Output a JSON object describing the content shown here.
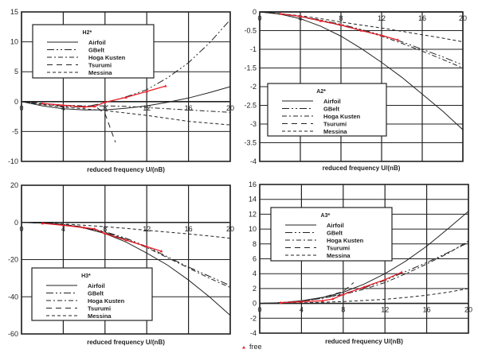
{
  "chart_data": [
    {
      "type": "line",
      "title": "H2*",
      "xlabel": "reduced frequency U/(nB)",
      "ylabel": "",
      "xlim": [
        0,
        20
      ],
      "ylim": [
        -10,
        15
      ],
      "xticks": [
        0,
        4,
        8,
        12,
        16,
        20
      ],
      "yticks": [
        -10,
        -5,
        0,
        5,
        10,
        15
      ],
      "grid": true,
      "legend_position": "top-left",
      "series": [
        {
          "name": "Airfoil",
          "x": [
            0,
            2,
            4,
            6,
            8,
            10,
            12,
            14,
            16,
            18,
            20
          ],
          "y": [
            0,
            -0.7,
            -1.2,
            -1.4,
            -1.4,
            -1.1,
            -0.7,
            -0.1,
            0.6,
            1.5,
            2.5
          ]
        },
        {
          "name": "GBelt",
          "x": [
            0,
            2,
            4,
            6,
            8,
            10,
            12,
            14,
            16,
            18,
            20
          ],
          "y": [
            0,
            -0.4,
            -0.8,
            -0.9,
            -0.2,
            0.8,
            2.0,
            4.0,
            6.5,
            9.8,
            13.7
          ]
        },
        {
          "name": "Hoga Kusten",
          "x": [
            0,
            2,
            4,
            6,
            8,
            10,
            12,
            14,
            16,
            18,
            20
          ],
          "y": [
            0,
            -0.3,
            -0.6,
            -0.7,
            -0.7,
            -0.8,
            -1.0,
            -1.2,
            -1.4,
            -1.6,
            -1.8
          ]
        },
        {
          "name": "Tsurumi",
          "x": [
            0,
            2,
            4,
            6,
            7,
            8,
            9
          ],
          "y": [
            0,
            -0.3,
            -0.6,
            -0.8,
            -0.7,
            -2.0,
            -6.8
          ]
        },
        {
          "name": "Messina",
          "x": [
            0,
            2,
            4,
            6,
            8,
            10,
            12,
            14,
            16,
            18,
            20
          ],
          "y": [
            0,
            -0.5,
            -0.9,
            -1.2,
            -1.5,
            -1.9,
            -2.3,
            -2.8,
            -3.3,
            -3.6,
            -3.9
          ]
        },
        {
          "name": "free",
          "x": [
            2,
            4,
            6,
            7,
            8,
            10,
            12,
            13.8
          ],
          "y": [
            -0.3,
            -0.6,
            -0.9,
            -0.8,
            -0.1,
            0.7,
            1.7,
            2.6
          ]
        }
      ]
    },
    {
      "type": "line",
      "title": "A2*",
      "xlabel": "reduced frequency U/(nB)",
      "ylabel": "",
      "xlim": [
        0,
        20
      ],
      "ylim": [
        -4,
        0
      ],
      "xticks": [
        0,
        4,
        8,
        12,
        16,
        20
      ],
      "yticks": [
        -4,
        -3.5,
        -3,
        -2.5,
        -2,
        -1.5,
        -1,
        -0.5,
        0
      ],
      "grid": true,
      "legend_position": "bottom-left",
      "series": [
        {
          "name": "Airfoil",
          "x": [
            0,
            2,
            4,
            6,
            8,
            10,
            12,
            14,
            16,
            18,
            20
          ],
          "y": [
            0,
            -0.06,
            -0.18,
            -0.38,
            -0.65,
            -0.98,
            -1.35,
            -1.75,
            -2.2,
            -2.65,
            -3.15
          ]
        },
        {
          "name": "GBelt",
          "x": [
            0,
            2,
            4,
            6,
            8,
            10,
            12,
            14,
            16,
            18,
            20
          ],
          "y": [
            0,
            -0.05,
            -0.12,
            -0.22,
            -0.33,
            -0.47,
            -0.62,
            -0.8,
            -1.0,
            -1.2,
            -1.42
          ]
        },
        {
          "name": "Hoga Kusten",
          "x": [
            0,
            2,
            4,
            6,
            8,
            10,
            12,
            14,
            16,
            18,
            20
          ],
          "y": [
            0,
            -0.05,
            -0.12,
            -0.23,
            -0.35,
            -0.49,
            -0.65,
            -0.84,
            -1.05,
            -1.27,
            -1.5
          ]
        },
        {
          "name": "Tsurumi",
          "x": [
            0,
            2,
            4,
            6,
            8,
            10
          ],
          "y": [
            0,
            -0.05,
            -0.13,
            -0.24,
            -0.36,
            -0.5
          ]
        },
        {
          "name": "Messina",
          "x": [
            0,
            2,
            4,
            6,
            8,
            10,
            12,
            14,
            16,
            18,
            20
          ],
          "y": [
            0,
            -0.05,
            -0.1,
            -0.18,
            -0.27,
            -0.35,
            -0.43,
            -0.52,
            -0.61,
            -0.7,
            -0.8
          ]
        },
        {
          "name": "free",
          "x": [
            2,
            4,
            6,
            8,
            10,
            12,
            13.6
          ],
          "y": [
            -0.05,
            -0.12,
            -0.24,
            -0.35,
            -0.5,
            -0.63,
            -0.75
          ]
        }
      ]
    },
    {
      "type": "line",
      "title": "H3*",
      "xlabel": "reduced frequency U/(nB)",
      "ylabel": "",
      "xlim": [
        0,
        20
      ],
      "ylim": [
        -60,
        20
      ],
      "xticks": [
        0,
        4,
        8,
        12,
        16,
        20
      ],
      "yticks": [
        -60,
        -40,
        -20,
        0,
        20
      ],
      "grid": true,
      "legend_position": "bottom-left",
      "series": [
        {
          "name": "Airfoil",
          "x": [
            0,
            2,
            4,
            6,
            8,
            10,
            12,
            14,
            16,
            18,
            20
          ],
          "y": [
            0,
            -0.3,
            -1.2,
            -3,
            -6,
            -10.5,
            -16.5,
            -23,
            -31,
            -40,
            -50
          ]
        },
        {
          "name": "GBelt",
          "x": [
            0,
            2,
            4,
            6,
            8,
            10,
            12,
            14,
            16,
            18,
            20
          ],
          "y": [
            0,
            -0.3,
            -1,
            -2.5,
            -5,
            -8.5,
            -13,
            -18.5,
            -24,
            -29,
            -34
          ]
        },
        {
          "name": "Hoga Kusten",
          "x": [
            0,
            2,
            4,
            6,
            8,
            10,
            12,
            14,
            16,
            18,
            20
          ],
          "y": [
            0,
            -0.3,
            -1.1,
            -2.7,
            -5.3,
            -9,
            -13.5,
            -19,
            -24.5,
            -30,
            -35
          ]
        },
        {
          "name": "Tsurumi",
          "x": [
            0,
            2,
            4,
            6,
            8,
            10
          ],
          "y": [
            0,
            -0.3,
            -1.1,
            -2.8,
            -5.5,
            -9.3
          ]
        },
        {
          "name": "Messina",
          "x": [
            0,
            2,
            4,
            6,
            8,
            10,
            12,
            14,
            16,
            18,
            20
          ],
          "y": [
            0,
            -0.3,
            -0.8,
            -1.5,
            -2.3,
            -3.2,
            -4.2,
            -5.2,
            -6.2,
            -7.3,
            -8.5
          ]
        },
        {
          "name": "free",
          "x": [
            2,
            4,
            6,
            7,
            8,
            10,
            12,
            13.4
          ],
          "y": [
            -0.5,
            -1.5,
            -2.8,
            -3.5,
            -6,
            -9.5,
            -13,
            -15.5
          ]
        }
      ]
    },
    {
      "type": "line",
      "title": "A3*",
      "xlabel": "reduced frequency U/(nB)",
      "ylabel": "",
      "xlim": [
        0,
        20
      ],
      "ylim": [
        -4,
        16
      ],
      "xticks": [
        0,
        4,
        8,
        12,
        16,
        20
      ],
      "yticks": [
        -4,
        -2,
        0,
        2,
        4,
        6,
        8,
        10,
        12,
        14,
        16
      ],
      "grid": true,
      "legend_position": "top-left",
      "series": [
        {
          "name": "Airfoil",
          "x": [
            0,
            2,
            4,
            6,
            8,
            10,
            12,
            14,
            16,
            18,
            20
          ],
          "y": [
            0,
            0.1,
            0.35,
            0.8,
            1.5,
            2.6,
            4,
            5.7,
            7.7,
            10,
            12.4
          ]
        },
        {
          "name": "GBelt",
          "x": [
            0,
            2,
            4,
            6,
            8,
            10,
            12,
            14,
            16,
            18,
            20
          ],
          "y": [
            0,
            0.1,
            0.3,
            0.7,
            1.3,
            2.1,
            3.1,
            4.3,
            5.5,
            6.8,
            8.2
          ]
        },
        {
          "name": "Hoga Kusten",
          "x": [
            0,
            2,
            4,
            6,
            8,
            10,
            12,
            14,
            16,
            18,
            20
          ],
          "y": [
            0,
            0.1,
            0.3,
            0.7,
            1.2,
            1.9,
            2.8,
            4,
            5.3,
            6.7,
            8.4
          ]
        },
        {
          "name": "Tsurumi",
          "x": [
            0,
            2,
            4,
            6,
            8,
            9
          ],
          "y": [
            0,
            0.1,
            0.35,
            0.8,
            1.6,
            2.8
          ]
        },
        {
          "name": "Messina",
          "x": [
            0,
            2,
            4,
            6,
            8,
            10,
            12,
            14,
            16,
            18,
            20
          ],
          "y": [
            0,
            0.02,
            0.08,
            0.15,
            0.25,
            0.4,
            0.55,
            0.8,
            1.1,
            1.5,
            2
          ]
        },
        {
          "name": "free",
          "x": [
            2,
            4,
            6,
            7,
            8,
            10,
            12,
            13.6
          ],
          "y": [
            0.1,
            0.25,
            0.35,
            0.6,
            1.2,
            2.2,
            3.2,
            4.2
          ]
        }
      ]
    }
  ],
  "footer_legend": {
    "label": "free",
    "color": "#e8202a",
    "marker": "triangle"
  },
  "colors": {
    "reference_lines": "#222222",
    "free": "#e8202a",
    "grid": "#222222"
  }
}
